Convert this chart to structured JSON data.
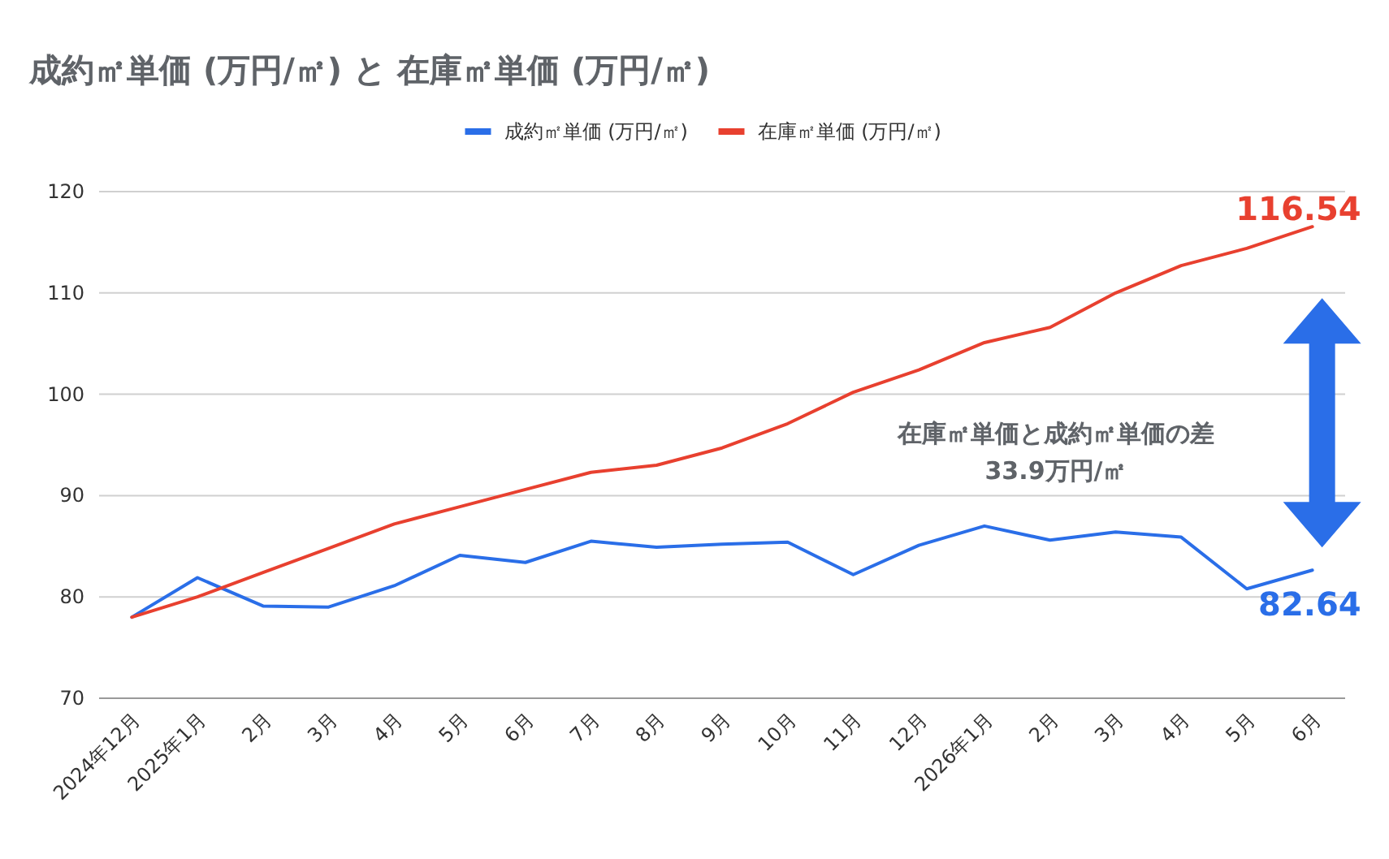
{
  "chart_data": {
    "type": "line",
    "title": "成約㎡単価 (万円/㎡) と 在庫㎡単価  (万円/㎡)",
    "categories": [
      "2024年12月",
      "2025年1月",
      "2月",
      "3月",
      "4月",
      "5月",
      "6月",
      "7月",
      "8月",
      "9月",
      "10月",
      "11月",
      "12月",
      "2026年1月",
      "2月",
      "3月",
      "4月",
      "5月",
      "6月"
    ],
    "series": [
      {
        "name": "成約㎡単価 (万円/㎡)",
        "color": "#2a6ee8",
        "values": [
          78.0,
          81.9,
          79.1,
          79.0,
          81.1,
          84.1,
          83.4,
          85.5,
          84.9,
          85.2,
          85.4,
          82.2,
          85.1,
          87.0,
          85.6,
          86.4,
          85.9,
          80.8,
          82.64
        ],
        "value_labels": [
          null,
          null,
          null,
          null,
          null,
          null,
          null,
          null,
          null,
          null,
          null,
          null,
          null,
          null,
          null,
          null,
          null,
          null,
          "82.64"
        ]
      },
      {
        "name": "在庫㎡単価  (万円/㎡)",
        "color": "#e8402f",
        "values": [
          78.0,
          80.0,
          82.4,
          84.8,
          87.2,
          88.9,
          90.6,
          92.3,
          93.0,
          94.7,
          97.1,
          100.2,
          102.4,
          105.1,
          106.6,
          110.0,
          112.7,
          114.4,
          116.54
        ],
        "value_labels": [
          null,
          null,
          null,
          null,
          null,
          null,
          null,
          null,
          null,
          null,
          null,
          null,
          null,
          null,
          null,
          null,
          null,
          null,
          "116.54"
        ]
      }
    ],
    "ylim": [
      70,
      120
    ],
    "yticks": [
      70,
      80,
      90,
      100,
      110,
      120
    ],
    "grid": "y",
    "legend": "top",
    "marker": "none",
    "line_style": "solid",
    "annotations": [
      "在庫㎡単価と成約㎡単価の差\n33.9万円/㎡"
    ]
  }
}
